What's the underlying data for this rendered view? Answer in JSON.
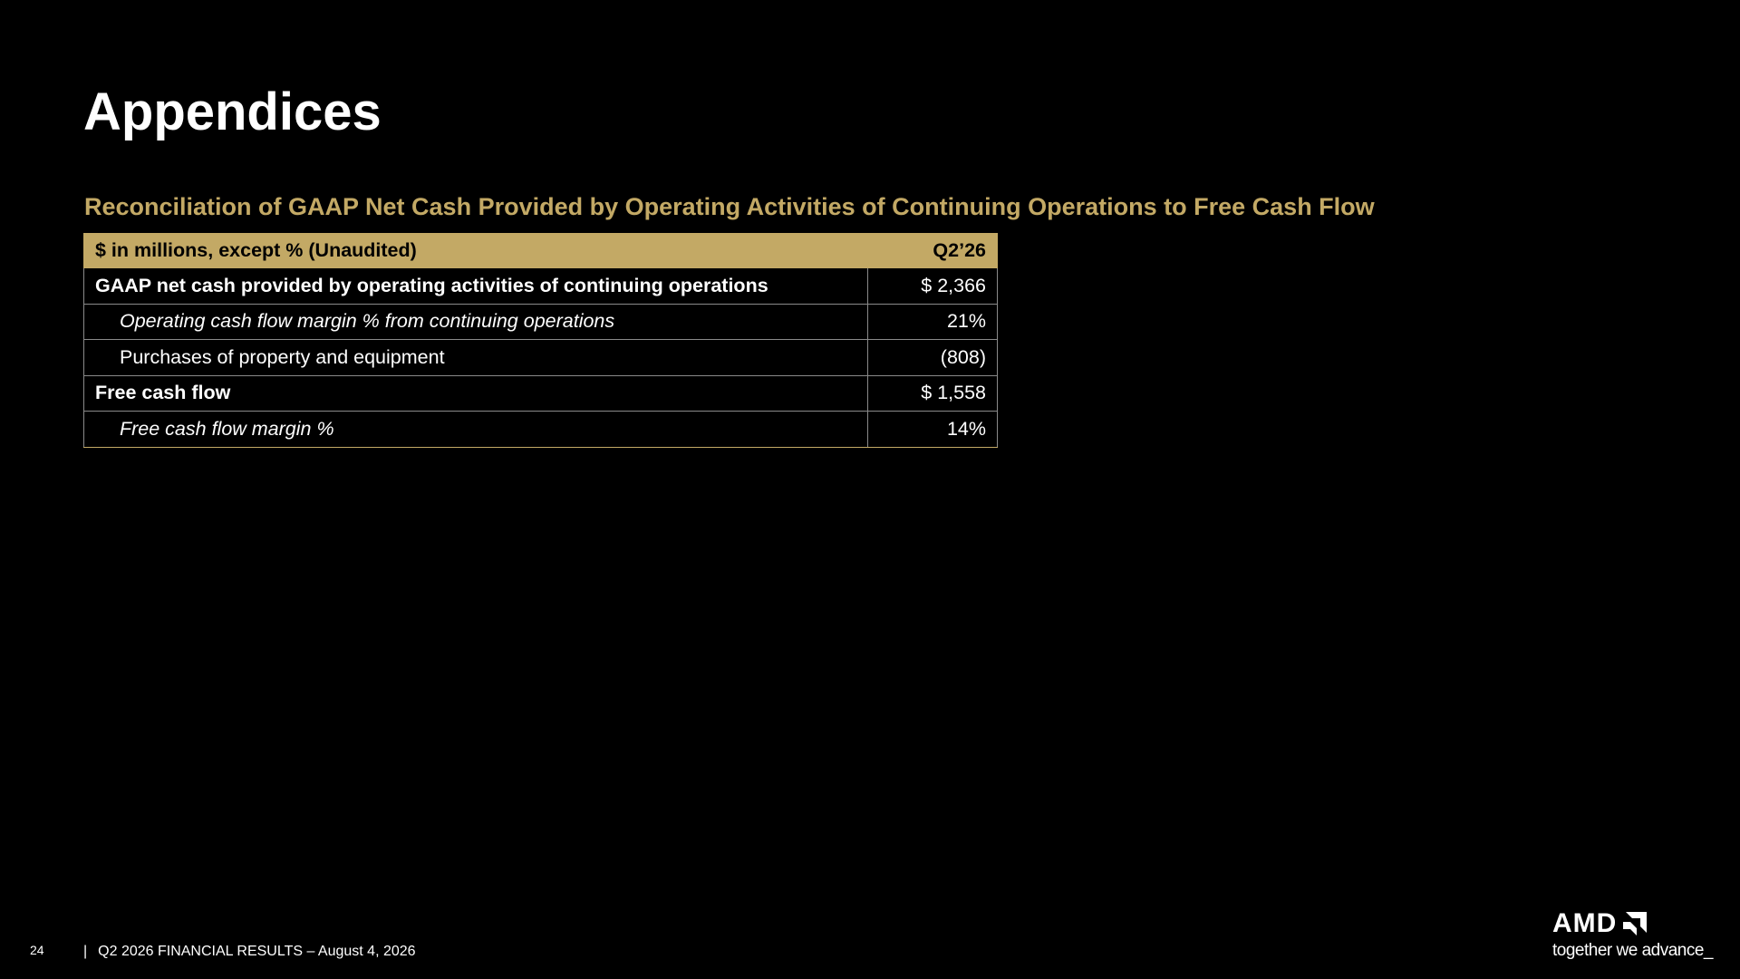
{
  "title": "Appendices",
  "section_title": "Reconciliation of GAAP Net Cash Provided by Operating Activities of Continuing Operations to Free Cash Flow",
  "table": {
    "header": {
      "label": "$ in millions, except % (Unaudited)",
      "period": "Q2’26"
    },
    "rows": [
      {
        "label": "GAAP net cash provided by operating activities of continuing operations",
        "value": "$ 2,366"
      },
      {
        "label": "Operating cash flow margin % from continuing operations",
        "value": "21%"
      },
      {
        "label": "Purchases of property and equipment",
        "value": "(808)"
      },
      {
        "label": "Free cash flow",
        "value": "$ 1,558"
      },
      {
        "label": "Free cash flow margin %",
        "value": "14%"
      }
    ]
  },
  "footer": {
    "page_number": "24",
    "separator": "|",
    "text": "Q2 2026 FINANCIAL RESULTS – August 4, 2026"
  },
  "logo": {
    "wordmark": "AMD",
    "tagline": "together we advance_"
  },
  "colors": {
    "background": "#000000",
    "accent_gold": "#c3a965",
    "text": "#ffffff"
  }
}
